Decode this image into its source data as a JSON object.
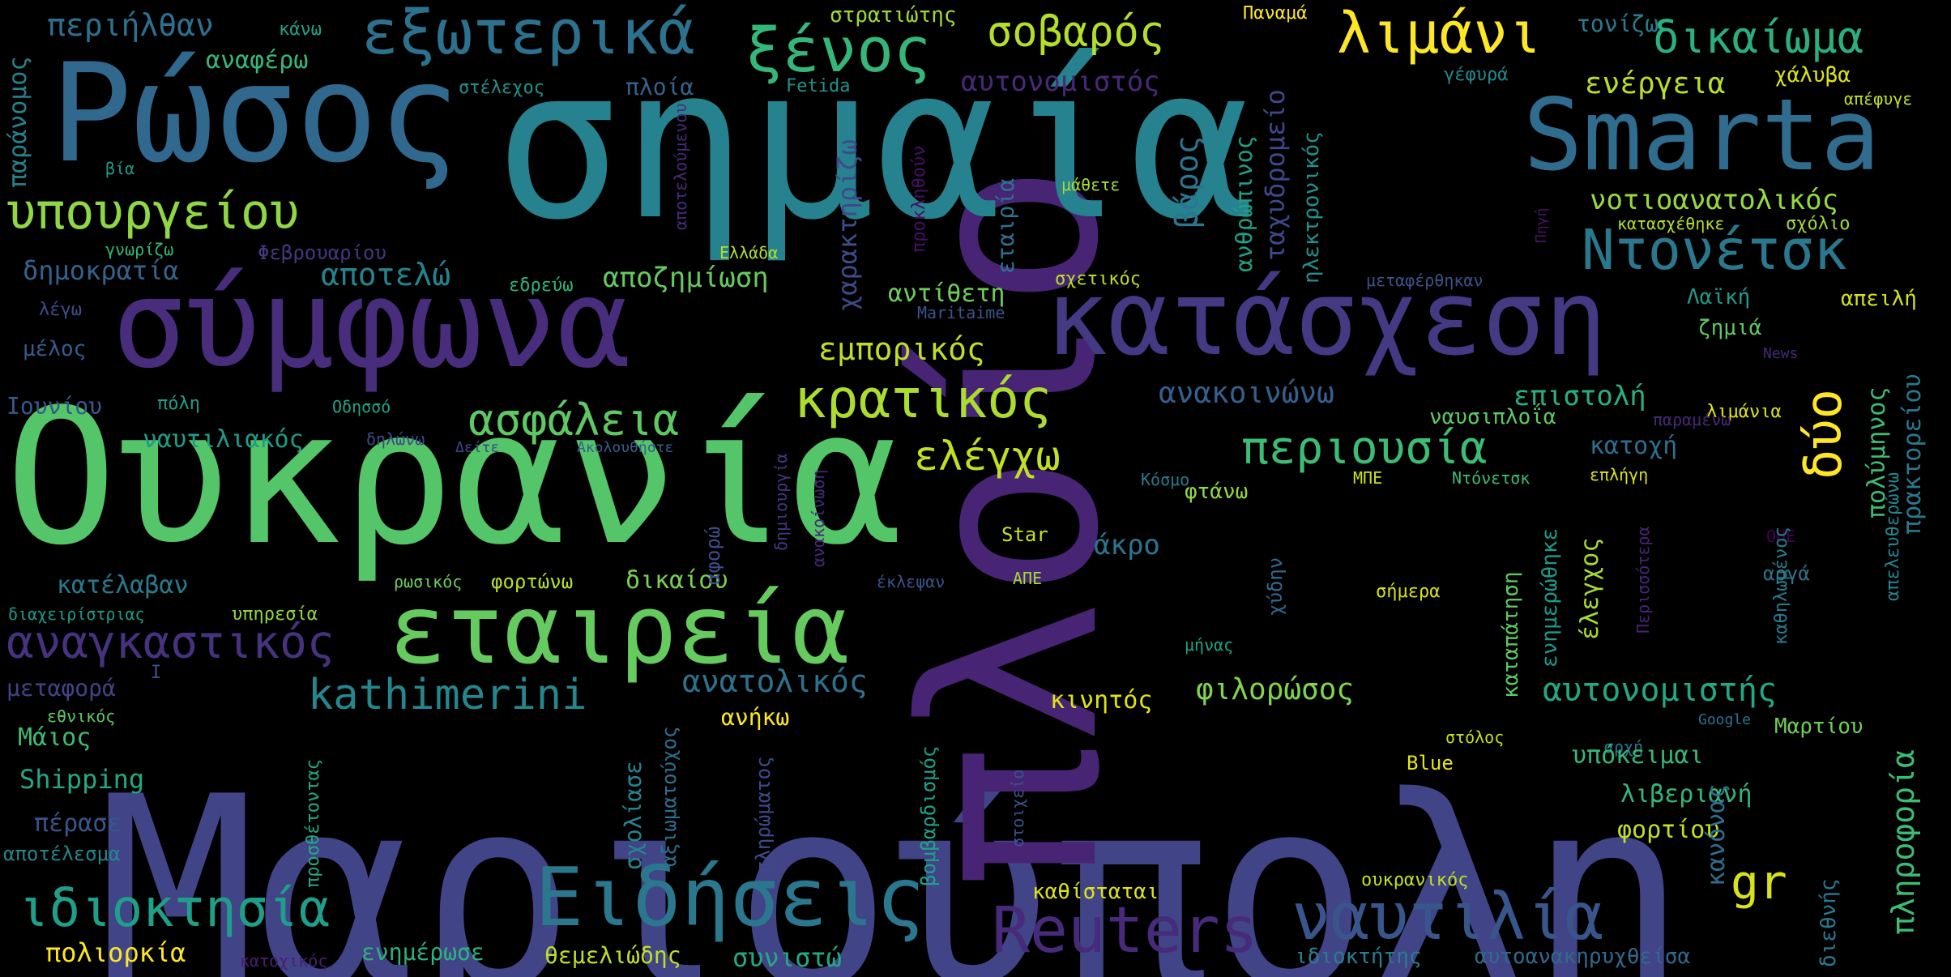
{
  "words": [
    {
      "text": "Μαριούπολη",
      "color": "#414487"
    },
    {
      "text": "πλοίο",
      "color": "#482475"
    },
    {
      "text": "σημαία",
      "color": "#26828e"
    },
    {
      "text": "Ουκρανία",
      "color": "#54c568"
    },
    {
      "text": "Ρώσος",
      "color": "#31688e"
    },
    {
      "text": "σύμφωνα",
      "color": "#472d7b"
    },
    {
      "text": "κατάσχεση",
      "color": "#443983"
    },
    {
      "text": "Smarta",
      "color": "#2f6c8e"
    },
    {
      "text": "εταιρεία",
      "color": "#65cb5e"
    },
    {
      "text": "Ειδήσεις",
      "color": "#2a778e"
    },
    {
      "text": "Reuters",
      "color": "#472a7a"
    },
    {
      "text": "ναυτιλία",
      "color": "#39568c"
    },
    {
      "text": "εξωτερικά",
      "color": "#2c728e"
    },
    {
      "text": "ξένος",
      "color": "#35b779"
    },
    {
      "text": "λιμάνι",
      "color": "#fde725"
    },
    {
      "text": "σοβαρός",
      "color": "#b5de2b"
    },
    {
      "text": "δικαίωμα",
      "color": "#2ab07f"
    },
    {
      "text": "υπουργείου",
      "color": "#8fd744"
    },
    {
      "text": "Ντονέτσκ",
      "color": "#2a788e"
    },
    {
      "text": "κρατικός",
      "color": "#addc30"
    },
    {
      "text": "ιδιοκτησία",
      "color": "#1f9e89"
    },
    {
      "text": "αναγκαστικός",
      "color": "#46327e"
    },
    {
      "text": "περιουσία",
      "color": "#3dbc74"
    },
    {
      "text": "ασφάλεια",
      "color": "#5ec962"
    },
    {
      "text": "ελέγχω",
      "color": "#c2df23"
    },
    {
      "text": "kathimerini",
      "color": "#24878e"
    },
    {
      "text": "αυτονομιστής",
      "color": "#22a884"
    },
    {
      "text": "δύο",
      "color": "#fde725"
    },
    {
      "text": "gr",
      "color": "#d8e219"
    },
    {
      "text": "περιήλθαν",
      "color": "#2d708e"
    },
    {
      "text": "αναφέρω",
      "color": "#35b779"
    },
    {
      "text": "στρατιώτης",
      "color": "#9bd93c"
    },
    {
      "text": "Παναμά",
      "color": "#fde725"
    },
    {
      "text": "τονίζω",
      "color": "#287c8e"
    },
    {
      "text": "κάνω",
      "color": "#1fa088"
    },
    {
      "text": "πλοία",
      "color": "#33638d"
    },
    {
      "text": "Fetida",
      "color": "#21918c"
    },
    {
      "text": "αυτονομιστός",
      "color": "#482878"
    },
    {
      "text": "ενέργεια",
      "color": "#b8de29"
    },
    {
      "text": "χάλυβα",
      "color": "#dde318"
    },
    {
      "text": "γέφυρά",
      "color": "#23898e"
    },
    {
      "text": "απέφυγε",
      "color": "#c2df23"
    },
    {
      "text": "στέλεχος",
      "color": "#20938c"
    },
    {
      "text": "βία",
      "color": "#1f998a"
    },
    {
      "text": "μάθετε",
      "color": "#a8db34"
    },
    {
      "text": "νοτιοανατολικός",
      "color": "#95d840"
    },
    {
      "text": "κατασχέθηκε",
      "color": "#b5de2b"
    },
    {
      "text": "σχόλιο",
      "color": "#a2da37"
    },
    {
      "text": "Φεβρουαρίου",
      "color": "#453781"
    },
    {
      "text": "Ελλάδα",
      "color": "#b5de2b"
    },
    {
      "text": "εδρεύω",
      "color": "#2db27d"
    },
    {
      "text": "αποζημίωση",
      "color": "#63cb5f"
    },
    {
      "text": "αποτελώ",
      "color": "#25838e"
    },
    {
      "text": "δημοκρατία",
      "color": "#33638d"
    },
    {
      "text": "γνωρίζω",
      "color": "#35b779"
    },
    {
      "text": "λέγω",
      "color": "#3e4c8a"
    },
    {
      "text": "μέλος",
      "color": "#365c8d"
    },
    {
      "text": "Maritaime",
      "color": "#3a548c"
    },
    {
      "text": "σχετικός",
      "color": "#b8de29"
    },
    {
      "text": "αντίθετη",
      "color": "#6ece58"
    },
    {
      "text": "εμπορικός",
      "color": "#bddf26"
    },
    {
      "text": "μεταφέρθηκαν",
      "color": "#3b528b"
    },
    {
      "text": "Λαϊκή",
      "color": "#1f9a8a"
    },
    {
      "text": "απειλή",
      "color": "#d2e21b"
    },
    {
      "text": "ζημιά",
      "color": "#5ec962"
    },
    {
      "text": "News",
      "color": "#482878"
    },
    {
      "text": "επιστολή",
      "color": "#29af7f"
    },
    {
      "text": "λιμάνια",
      "color": "#dde318"
    },
    {
      "text": "παραμένω",
      "color": "#482878"
    },
    {
      "text": "Ιουνίου",
      "color": "#375a8c"
    },
    {
      "text": "πόλη",
      "color": "#1f9e89"
    },
    {
      "text": "Οδησσό",
      "color": "#20a486"
    },
    {
      "text": "ανακοινώνω",
      "color": "#355f8d"
    },
    {
      "text": "ναυσιπλοΐα",
      "color": "#5ec962"
    },
    {
      "text": "ναυτιλιακός",
      "color": "#1e9c89"
    },
    {
      "text": "δηλώνω",
      "color": "#3f4889"
    },
    {
      "text": "Δείτε",
      "color": "#3f4889"
    },
    {
      "text": "Ακολουθήστε",
      "color": "#355f8d"
    },
    {
      "text": "Κόσμο",
      "color": "#287c8e"
    },
    {
      "text": "ΜΠΕ",
      "color": "#c8e020"
    },
    {
      "text": "Ντόνετσκ",
      "color": "#3dbc74"
    },
    {
      "text": "κατοχή",
      "color": "#2e6f8e"
    },
    {
      "text": "επλήγη",
      "color": "#dde318"
    },
    {
      "text": "φτάνω",
      "color": "#90d743"
    },
    {
      "text": "Star",
      "color": "#c8e020"
    },
    {
      "text": "άκρο",
      "color": "#2b758e"
    },
    {
      "text": "κατέλαβαν",
      "color": "#297a8e"
    },
    {
      "text": "ρωσικός",
      "color": "#6ece58"
    },
    {
      "text": "φορτώνω",
      "color": "#b5de2b"
    },
    {
      "text": "δικαίου",
      "color": "#7ad151"
    },
    {
      "text": "ΑΠΕ",
      "color": "#a2da37"
    },
    {
      "text": "έκλεψαν",
      "color": "#3b528b"
    },
    {
      "text": "OHE",
      "color": "#440154"
    },
    {
      "text": "αργά",
      "color": "#2b758e"
    },
    {
      "text": "διαχειρίστριας",
      "color": "#1f9a8a"
    },
    {
      "text": "υπηρεσία",
      "color": "#8fd744"
    },
    {
      "text": "σήμερα",
      "color": "#d8e219"
    },
    {
      "text": "μεταφορά",
      "color": "#414487"
    },
    {
      "text": "I",
      "color": "#3b528b"
    },
    {
      "text": "μήνας",
      "color": "#20a486"
    },
    {
      "text": "ανατολικός",
      "color": "#2c728e"
    },
    {
      "text": "φιλορώσος",
      "color": "#81d34d"
    },
    {
      "text": "εθνικός",
      "color": "#5ec962"
    },
    {
      "text": "ανήκω",
      "color": "#fde725"
    },
    {
      "text": "κινητός",
      "color": "#dde318"
    },
    {
      "text": "Google",
      "color": "#2c728e"
    },
    {
      "text": "Μαρτίου",
      "color": "#6ece58"
    },
    {
      "text": "Μάιος",
      "color": "#3dbc74"
    },
    {
      "text": "στόλος",
      "color": "#c2df23"
    },
    {
      "text": "αρχή",
      "color": "#2a788e"
    },
    {
      "text": "υπόκειμαι",
      "color": "#35b779"
    },
    {
      "text": "Shipping",
      "color": "#22a884"
    },
    {
      "text": "Blue",
      "color": "#e5e419"
    },
    {
      "text": "λιβεριανή",
      "color": "#32b67a"
    },
    {
      "text": "πέρασε",
      "color": "#3a548c"
    },
    {
      "text": "φορτίου",
      "color": "#c0df25"
    },
    {
      "text": "αποτέλεσμα",
      "color": "#24868e"
    },
    {
      "text": "ουκρανικός",
      "color": "#c0df25"
    },
    {
      "text": "καθίσταται",
      "color": "#dde318"
    },
    {
      "text": "πολιορκία",
      "color": "#fde725"
    },
    {
      "text": "κατοχικός",
      "color": "#481f70"
    },
    {
      "text": "ενημέρωσε",
      "color": "#2db27d"
    },
    {
      "text": "θεμελιώδης",
      "color": "#bddf26"
    },
    {
      "text": "συνιστώ",
      "color": "#22a884"
    },
    {
      "text": "ιδιοκτήτης",
      "color": "#287d8e"
    },
    {
      "text": "αυτοανακηρυχθείσα",
      "color": "#31688e"
    },
    {
      "text": "παράνομος",
      "color": "#26828e"
    },
    {
      "text": "χαρακτηρίζω",
      "color": "#3e4a89"
    },
    {
      "text": "αποτελούμενου",
      "color": "#472c7a"
    },
    {
      "text": "προκληθούν",
      "color": "#471063"
    },
    {
      "text": "ανθρώπινος",
      "color": "#1fa187"
    },
    {
      "text": "βάρος",
      "color": "#2b758e"
    },
    {
      "text": "ταχυδρομείο",
      "color": "#3f4889"
    },
    {
      "text": "ηλεκτρονικός",
      "color": "#21918c"
    },
    {
      "text": "Πηγή",
      "color": "#481467"
    },
    {
      "text": "εταιρία",
      "color": "#2c728e"
    },
    {
      "text": "πολύμηνος",
      "color": "#3dbc74"
    },
    {
      "text": "πρακτορείου",
      "color": "#2a788e"
    },
    {
      "text": "απελευθερώνω",
      "color": "#25848e"
    },
    {
      "text": "καθηλωμένος",
      "color": "#287c8e"
    },
    {
      "text": "Περισσότερα",
      "color": "#482475"
    },
    {
      "text": "πληροφορία",
      "color": "#3dbc74"
    },
    {
      "text": "διεθνής",
      "color": "#2a788e"
    },
    {
      "text": "κανόνας",
      "color": "#2e6f8e"
    },
    {
      "text": "έλεγχος",
      "color": "#a8db34"
    },
    {
      "text": "ενημερώθηκε",
      "color": "#1f998a"
    },
    {
      "text": "καταπάτηση",
      "color": "#5ec962"
    },
    {
      "text": "χύδην",
      "color": "#31688e"
    },
    {
      "text": "δημιουργία",
      "color": "#453781"
    },
    {
      "text": "ανακοίνωση",
      "color": "#482878"
    },
    {
      "text": "αφορώ",
      "color": "#3e4c8a"
    },
    {
      "text": "σχολίασε",
      "color": "#25858e"
    },
    {
      "text": "αξιωματούχος",
      "color": "#2d708e"
    },
    {
      "text": "πληρώματος",
      "color": "#3e4a89"
    },
    {
      "text": "προσθέτοντας",
      "color": "#22a884"
    },
    {
      "text": "βομβαρδισμός",
      "color": "#1fa088"
    },
    {
      "text": "στοιχείο",
      "color": "#3b528b"
    }
  ]
}
